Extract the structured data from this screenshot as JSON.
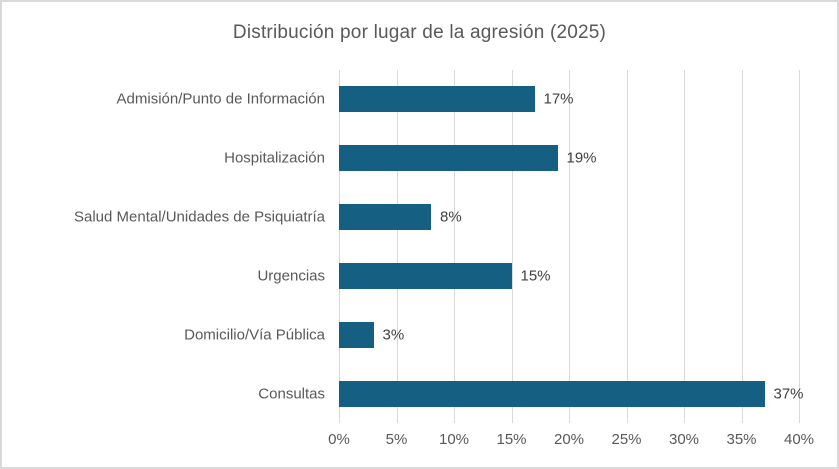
{
  "window": {
    "background_color": "#FFFFFF",
    "frame_border_color": "#D9D9D9"
  },
  "chart_data": {
    "type": "bar",
    "orientation": "horizontal",
    "title": "Distribución por lugar de la agresión (2025)",
    "categories": [
      "Admisión/Punto de Información",
      "Hospitalización",
      "Salud Mental/Unidades de Psiquiatría",
      "Urgencias",
      "Domicilio/Vía Pública",
      "Consultas"
    ],
    "values": [
      17,
      19,
      8,
      15,
      3,
      37
    ],
    "data_labels": [
      "17%",
      "19%",
      "8%",
      "15%",
      "3%",
      "37%"
    ],
    "xlabel": "",
    "ylabel": "",
    "xlim": [
      0,
      40
    ],
    "x_tick_step": 5,
    "x_tick_labels": [
      "0%",
      "5%",
      "10%",
      "15%",
      "20%",
      "25%",
      "30%",
      "35%",
      "40%"
    ],
    "grid": "vertical-gridlines-on",
    "legend": "none",
    "colors": {
      "bar_fill": "#156082",
      "gridline": "#D9D9D9",
      "title_text": "#595959",
      "category_text": "#595959",
      "axis_tick_text": "#595959",
      "data_label_text": "#404040"
    }
  }
}
